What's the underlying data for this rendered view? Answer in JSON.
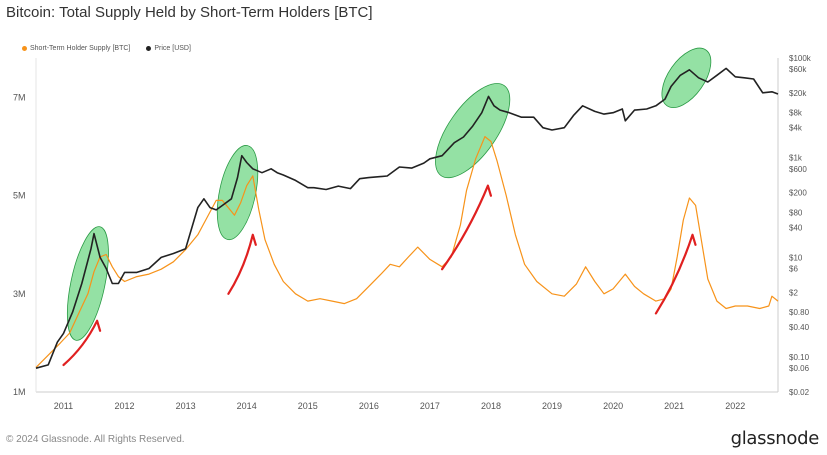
{
  "title": "Bitcoin: Total Supply Held by Short-Term Holders [BTC]",
  "footer": "© 2024 Glassnode. All Rights Reserved.",
  "brand": "glassnode",
  "colors": {
    "supply": "#f7931a",
    "price": "#222222",
    "highlight": "#3cc85a",
    "arrow": "#e02020"
  },
  "chart_data": {
    "type": "line",
    "legend": [
      "Short-Term Holder Supply [BTC]",
      "Price [USD]"
    ],
    "x_ticks": [
      "2011",
      "2012",
      "2013",
      "2014",
      "2015",
      "2016",
      "2017",
      "2018",
      "2019",
      "2020",
      "2021",
      "2022"
    ],
    "y_left_ticks": [
      "1M",
      "3M",
      "5M",
      "7M"
    ],
    "y_right_ticks": [
      "$100k",
      "$60k",
      "$20k",
      "$8k",
      "$4k",
      "$1k",
      "$600",
      "$200",
      "$80",
      "$40",
      "$10",
      "$6",
      "$2",
      "$0.80",
      "$0.40",
      "$0.10",
      "$0.06",
      "$0.02"
    ],
    "y_left_range": [
      1000000,
      7800000
    ],
    "y_right_range": [
      0.02,
      100000
    ],
    "y_right_scale": "log",
    "x_range": [
      2010.55,
      2022.7
    ],
    "series": [
      {
        "name": "Short-Term Holder Supply [BTC]",
        "axis": "left",
        "points": [
          [
            2010.55,
            1.5
          ],
          [
            2010.75,
            1.75
          ],
          [
            2010.95,
            2.0
          ],
          [
            2011.1,
            2.2
          ],
          [
            2011.25,
            2.6
          ],
          [
            2011.4,
            3.0
          ],
          [
            2011.5,
            3.45
          ],
          [
            2011.6,
            3.75
          ],
          [
            2011.7,
            3.8
          ],
          [
            2011.8,
            3.55
          ],
          [
            2011.9,
            3.35
          ],
          [
            2012.0,
            3.25
          ],
          [
            2012.2,
            3.35
          ],
          [
            2012.4,
            3.4
          ],
          [
            2012.6,
            3.5
          ],
          [
            2012.8,
            3.65
          ],
          [
            2013.0,
            3.9
          ],
          [
            2013.2,
            4.2
          ],
          [
            2013.35,
            4.55
          ],
          [
            2013.5,
            4.9
          ],
          [
            2013.6,
            4.9
          ],
          [
            2013.7,
            4.75
          ],
          [
            2013.8,
            4.6
          ],
          [
            2013.9,
            4.85
          ],
          [
            2014.0,
            5.2
          ],
          [
            2014.1,
            5.4
          ],
          [
            2014.2,
            4.7
          ],
          [
            2014.3,
            4.1
          ],
          [
            2014.45,
            3.6
          ],
          [
            2014.6,
            3.25
          ],
          [
            2014.8,
            3.0
          ],
          [
            2015.0,
            2.85
          ],
          [
            2015.2,
            2.9
          ],
          [
            2015.4,
            2.85
          ],
          [
            2015.6,
            2.8
          ],
          [
            2015.8,
            2.9
          ],
          [
            2016.0,
            3.15
          ],
          [
            2016.2,
            3.4
          ],
          [
            2016.35,
            3.6
          ],
          [
            2016.5,
            3.55
          ],
          [
            2016.65,
            3.75
          ],
          [
            2016.8,
            3.95
          ],
          [
            2017.0,
            3.7
          ],
          [
            2017.2,
            3.55
          ],
          [
            2017.35,
            3.75
          ],
          [
            2017.5,
            4.4
          ],
          [
            2017.6,
            5.1
          ],
          [
            2017.75,
            5.75
          ],
          [
            2017.9,
            6.2
          ],
          [
            2018.0,
            6.1
          ],
          [
            2018.1,
            5.7
          ],
          [
            2018.25,
            5.0
          ],
          [
            2018.4,
            4.2
          ],
          [
            2018.55,
            3.6
          ],
          [
            2018.75,
            3.25
          ],
          [
            2019.0,
            3.0
          ],
          [
            2019.2,
            2.95
          ],
          [
            2019.4,
            3.2
          ],
          [
            2019.55,
            3.55
          ],
          [
            2019.7,
            3.25
          ],
          [
            2019.85,
            3.0
          ],
          [
            2020.0,
            3.1
          ],
          [
            2020.2,
            3.4
          ],
          [
            2020.35,
            3.15
          ],
          [
            2020.5,
            3.0
          ],
          [
            2020.7,
            2.85
          ],
          [
            2020.85,
            2.9
          ],
          [
            2020.95,
            3.1
          ],
          [
            2021.05,
            3.75
          ],
          [
            2021.15,
            4.5
          ],
          [
            2021.25,
            4.95
          ],
          [
            2021.35,
            4.8
          ],
          [
            2021.45,
            4.05
          ],
          [
            2021.55,
            3.3
          ],
          [
            2021.7,
            2.85
          ],
          [
            2021.85,
            2.7
          ],
          [
            2022.0,
            2.75
          ],
          [
            2022.2,
            2.75
          ],
          [
            2022.4,
            2.7
          ],
          [
            2022.55,
            2.75
          ],
          [
            2022.6,
            2.95
          ],
          [
            2022.7,
            2.85
          ]
        ]
      },
      {
        "name": "Price [USD]",
        "axis": "right",
        "points": [
          [
            2010.55,
            0.06
          ],
          [
            2010.75,
            0.07
          ],
          [
            2010.9,
            0.2
          ],
          [
            2011.0,
            0.3
          ],
          [
            2011.15,
            0.8
          ],
          [
            2011.3,
            3
          ],
          [
            2011.45,
            15
          ],
          [
            2011.5,
            30
          ],
          [
            2011.6,
            10
          ],
          [
            2011.7,
            6
          ],
          [
            2011.8,
            3
          ],
          [
            2011.9,
            3
          ],
          [
            2012.0,
            5
          ],
          [
            2012.2,
            5
          ],
          [
            2012.4,
            6
          ],
          [
            2012.6,
            10
          ],
          [
            2012.8,
            12
          ],
          [
            2013.0,
            15
          ],
          [
            2013.2,
            100
          ],
          [
            2013.3,
            150
          ],
          [
            2013.4,
            100
          ],
          [
            2013.5,
            90
          ],
          [
            2013.6,
            110
          ],
          [
            2013.75,
            150
          ],
          [
            2013.85,
            400
          ],
          [
            2013.92,
            1100
          ],
          [
            2014.0,
            800
          ],
          [
            2014.1,
            600
          ],
          [
            2014.25,
            500
          ],
          [
            2014.4,
            600
          ],
          [
            2014.5,
            500
          ],
          [
            2014.6,
            450
          ],
          [
            2014.8,
            350
          ],
          [
            2015.0,
            250
          ],
          [
            2015.1,
            250
          ],
          [
            2015.3,
            230
          ],
          [
            2015.5,
            270
          ],
          [
            2015.7,
            240
          ],
          [
            2015.85,
            380
          ],
          [
            2016.0,
            400
          ],
          [
            2016.3,
            430
          ],
          [
            2016.5,
            650
          ],
          [
            2016.7,
            620
          ],
          [
            2016.9,
            780
          ],
          [
            2017.0,
            950
          ],
          [
            2017.2,
            1100
          ],
          [
            2017.4,
            2000
          ],
          [
            2017.55,
            2600
          ],
          [
            2017.7,
            4300
          ],
          [
            2017.85,
            8000
          ],
          [
            2017.96,
            17000
          ],
          [
            2018.05,
            11000
          ],
          [
            2018.15,
            9000
          ],
          [
            2018.3,
            8000
          ],
          [
            2018.5,
            6500
          ],
          [
            2018.7,
            6500
          ],
          [
            2018.85,
            4000
          ],
          [
            2019.0,
            3600
          ],
          [
            2019.2,
            4000
          ],
          [
            2019.35,
            7000
          ],
          [
            2019.5,
            11000
          ],
          [
            2019.7,
            8500
          ],
          [
            2019.85,
            7500
          ],
          [
            2020.0,
            8000
          ],
          [
            2020.15,
            9500
          ],
          [
            2020.2,
            5500
          ],
          [
            2020.35,
            9000
          ],
          [
            2020.55,
            9500
          ],
          [
            2020.7,
            11000
          ],
          [
            2020.85,
            15000
          ],
          [
            2020.95,
            27000
          ],
          [
            2021.1,
            45000
          ],
          [
            2021.25,
            58000
          ],
          [
            2021.4,
            40000
          ],
          [
            2021.55,
            33000
          ],
          [
            2021.7,
            45000
          ],
          [
            2021.85,
            62000
          ],
          [
            2022.0,
            42000
          ],
          [
            2022.15,
            40000
          ],
          [
            2022.3,
            38000
          ],
          [
            2022.45,
            20000
          ],
          [
            2022.6,
            21000
          ],
          [
            2022.7,
            19000
          ]
        ]
      }
    ],
    "y_left_unit_scale": 1000000,
    "highlights": [
      {
        "x": 2011.4,
        "y_right": 3
      },
      {
        "x": 2013.85,
        "y_right": 200
      },
      {
        "x": 2017.7,
        "y_right": 3500
      },
      {
        "x": 2021.2,
        "y_right": 40000
      }
    ],
    "arrows": [
      {
        "from": [
          2011.0,
          1.55
        ],
        "to": [
          2011.55,
          2.45
        ]
      },
      {
        "from": [
          2013.7,
          3.0
        ],
        "to": [
          2014.1,
          4.2
        ]
      },
      {
        "from": [
          2017.2,
          3.5
        ],
        "to": [
          2017.95,
          5.2
        ]
      },
      {
        "from": [
          2020.7,
          2.6
        ],
        "to": [
          2021.3,
          4.2
        ]
      }
    ]
  }
}
